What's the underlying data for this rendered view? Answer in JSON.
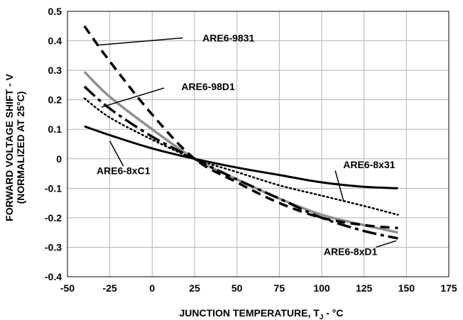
{
  "chart_data": {
    "type": "line",
    "title": "",
    "xlabel": "JUNCTION TEMPERATURE, T",
    "xlabel_sub": "J",
    "xlabel_suffix": " - °C",
    "ylabel_line1": "FORWARD VOLTAGE SHIFT - V",
    "ylabel_line2": "(NORMALIZED AT 25°C)",
    "xlim": [
      -50,
      175
    ],
    "ylim": [
      -0.4,
      0.5
    ],
    "x_ticks": [
      "-50",
      "-25",
      "0",
      "25",
      "50",
      "75",
      "100",
      "125",
      "150",
      "175"
    ],
    "y_ticks": [
      "0.5",
      "0.4",
      "0.3",
      "0.2",
      "0.1",
      "0",
      "-0.1",
      "-0.2",
      "-0.3",
      "-0.4"
    ],
    "grid": true,
    "series": [
      {
        "name": "ARE6-9831",
        "style": "long-dash",
        "color": "#000000",
        "points": [
          [
            -40,
            0.45
          ],
          [
            -25,
            0.33
          ],
          [
            0,
            0.15
          ],
          [
            25,
            0.0
          ],
          [
            50,
            -0.08
          ],
          [
            75,
            -0.15
          ],
          [
            100,
            -0.2
          ],
          [
            125,
            -0.225
          ],
          [
            145,
            -0.235
          ]
        ]
      },
      {
        "name": "ARE6-98D1",
        "style": "dash-dot",
        "color": "#000000",
        "points": [
          [
            -40,
            0.245
          ],
          [
            -25,
            0.17
          ],
          [
            0,
            0.075
          ],
          [
            25,
            0.0
          ],
          [
            50,
            -0.07
          ],
          [
            75,
            -0.135
          ],
          [
            100,
            -0.2
          ],
          [
            125,
            -0.245
          ],
          [
            145,
            -0.27
          ]
        ]
      },
      {
        "name": "ARE6-8xD1",
        "style": "solid-gray",
        "color": "#909090",
        "points": [
          [
            -40,
            0.295
          ],
          [
            -25,
            0.21
          ],
          [
            0,
            0.1
          ],
          [
            25,
            0.0
          ],
          [
            50,
            -0.07
          ],
          [
            75,
            -0.135
          ],
          [
            100,
            -0.19
          ],
          [
            125,
            -0.225
          ],
          [
            145,
            -0.25
          ]
        ]
      },
      {
        "name": "ARE6-8x31",
        "style": "dotted",
        "color": "#000000",
        "points": [
          [
            -40,
            0.205
          ],
          [
            -25,
            0.14
          ],
          [
            0,
            0.065
          ],
          [
            25,
            0.0
          ],
          [
            50,
            -0.045
          ],
          [
            75,
            -0.09
          ],
          [
            100,
            -0.125
          ],
          [
            125,
            -0.16
          ],
          [
            145,
            -0.19
          ]
        ]
      },
      {
        "name": "ARE6-8xC1",
        "style": "solid",
        "color": "#000000",
        "points": [
          [
            -40,
            0.11
          ],
          [
            -25,
            0.08
          ],
          [
            0,
            0.035
          ],
          [
            25,
            0.0
          ],
          [
            50,
            -0.03
          ],
          [
            75,
            -0.055
          ],
          [
            100,
            -0.08
          ],
          [
            125,
            -0.095
          ],
          [
            145,
            -0.1
          ]
        ]
      }
    ],
    "annotations": [
      {
        "text": "ARE6-9831",
        "series": "ARE6-9831"
      },
      {
        "text": "ARE6-98D1",
        "series": "ARE6-98D1"
      },
      {
        "text": "ARE6-8xC1",
        "series": "ARE6-8xC1"
      },
      {
        "text": "ARE6-8x31",
        "series": "ARE6-8x31"
      },
      {
        "text": "ARE6-8xD1",
        "series": "ARE6-8xD1"
      }
    ]
  }
}
